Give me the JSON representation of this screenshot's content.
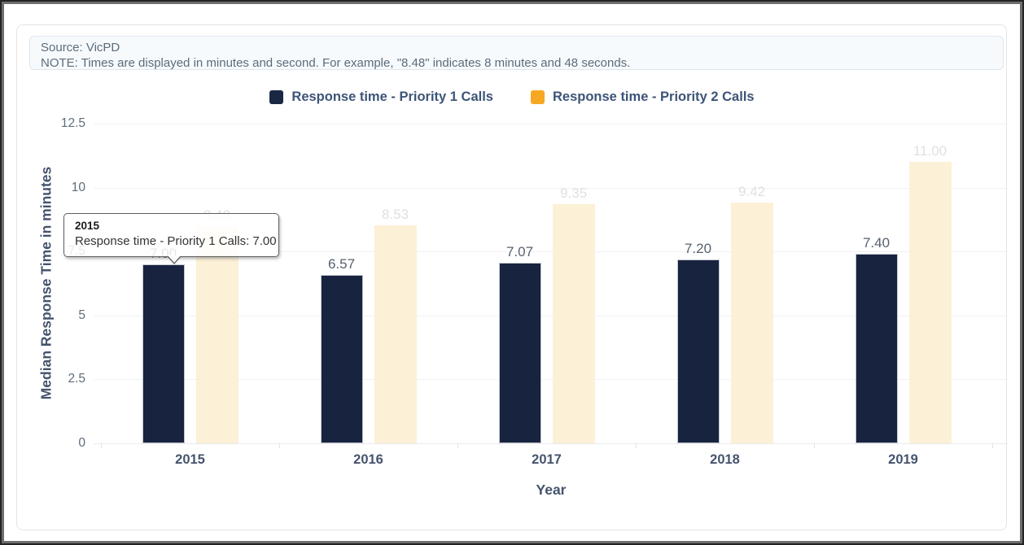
{
  "note": {
    "source_line": "Source: VicPD",
    "note_line": "NOTE: Times are displayed in minutes and second. For example, \"8.48\" indicates 8 minutes and 48 seconds."
  },
  "legend": {
    "items": [
      {
        "label": "Response time - Priority 1 Calls",
        "color": "#1a2844"
      },
      {
        "label": "Response time - Priority 2 Calls",
        "color": "#f7a823"
      }
    ]
  },
  "tooltip": {
    "title": "2015",
    "body": "Response time - Priority 1 Calls: 7.00"
  },
  "chart_data": {
    "type": "bar",
    "title": "",
    "categories": [
      "2015",
      "2016",
      "2017",
      "2018",
      "2019"
    ],
    "series": [
      {
        "name": "Response time - Priority 1 Calls",
        "values": [
          7.0,
          6.57,
          7.07,
          7.2,
          7.4
        ],
        "labels": [
          "7.00",
          "6.57",
          "7.07",
          "7.20",
          "7.40"
        ],
        "color": "#1a2844",
        "fill": "#17233f",
        "label_color": "#57626e",
        "state": "normal"
      },
      {
        "name": "Response time - Priority 2 Calls",
        "values": [
          8.48,
          8.53,
          9.35,
          9.42,
          11.0
        ],
        "labels": [
          "8.48",
          "8.53",
          "9.35",
          "9.42",
          "11.00"
        ],
        "color": "#f7a823",
        "fill": "#fcf0d6",
        "label_color": "#dee1e4",
        "state": "dimmed"
      }
    ],
    "xlabel": "Year",
    "ylabel": "Median Response Time in minutes",
    "ylim": [
      0,
      12.5
    ],
    "yticks": [
      0,
      2.5,
      5,
      7.5,
      10,
      12.5
    ],
    "ytick_labels": [
      "0",
      "2.5",
      "5",
      "7.5",
      "10",
      "12.5"
    ],
    "grid": true,
    "legend_position": "top",
    "hovered_point": {
      "category": "2015",
      "series": "Response time - Priority 1 Calls"
    }
  }
}
